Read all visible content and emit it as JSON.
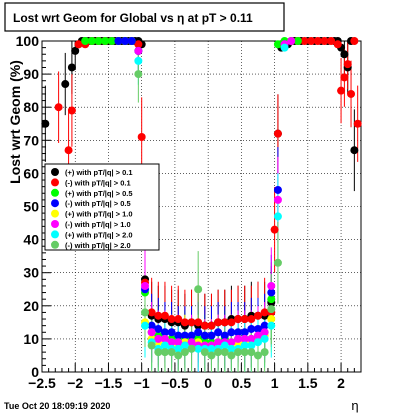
{
  "window": {
    "footer_timestamp": "Tue Oct 20 18:09:19 2020"
  },
  "chart_data": {
    "type": "scatter",
    "title": "Lost wrt Geom for Global vs   η at pT > 0.11",
    "xlabel": "η",
    "ylabel": "Lost wrt Geom (%)",
    "xlim": [
      -2.5,
      2.3
    ],
    "ylim": [
      0,
      100
    ],
    "x_ticks": [
      -2.5,
      -2,
      -1.5,
      -1,
      -0.5,
      0,
      0.5,
      1,
      1.5,
      2
    ],
    "x_tick_labels": [
      "−2.5",
      "−2",
      "−1.5",
      "−1",
      "−0.5",
      "0",
      "0.5",
      "1",
      "1.5",
      "2"
    ],
    "y_ticks": [
      0,
      10,
      20,
      30,
      40,
      50,
      60,
      70,
      80,
      90,
      100
    ],
    "y_tick_labels": [
      "0",
      "10",
      "20",
      "30",
      "40",
      "50",
      "60",
      "70",
      "80",
      "90",
      "100"
    ],
    "grid": true,
    "legend_position": "left-middle",
    "series": [
      {
        "name": "(+) with pT/|q| > 0.1",
        "color": "#000000",
        "x": [
          -2.45,
          -2.15,
          -2.05,
          -2.0,
          -1.95,
          -1.9,
          -1.85,
          -1.8,
          -1.75,
          -1.7,
          -1.65,
          -1.6,
          -1.55,
          -1.5,
          -1.45,
          -1.4,
          -1.35,
          -1.3,
          -1.25,
          -1.2,
          -1.15,
          -1.1,
          -1.05,
          -1.0,
          -0.95,
          -0.85,
          -0.75,
          -0.65,
          -0.55,
          -0.45,
          -0.35,
          -0.25,
          -0.15,
          -0.05,
          0.05,
          0.15,
          0.25,
          0.35,
          0.45,
          0.55,
          0.65,
          0.75,
          0.85,
          0.95,
          1.05,
          1.1,
          1.2,
          1.3,
          1.4,
          1.5,
          1.6,
          1.7,
          1.8,
          1.9,
          1.95,
          2.0,
          2.05,
          2.1,
          2.15,
          2.2
        ],
        "y": [
          75,
          87,
          92,
          97,
          99,
          100,
          100,
          100,
          100,
          100,
          100,
          100,
          100,
          100,
          100,
          100,
          100,
          100,
          100,
          100,
          100,
          100,
          100,
          99,
          28,
          17,
          16,
          16,
          15,
          15,
          14,
          15,
          14,
          14,
          14,
          15,
          15,
          16,
          16,
          16,
          17,
          17,
          17,
          21,
          72,
          98,
          99,
          100,
          100,
          100,
          100,
          100,
          100,
          100,
          100,
          98,
          96,
          92,
          100,
          67
        ]
      },
      {
        "name": "(-) with pT/|q| > 0.1",
        "color": "#ff0000",
        "x": [
          -2.25,
          -2.1,
          -2.05,
          -1.95,
          -1.85,
          -1.75,
          -1.65,
          -1.55,
          -1.45,
          -1.35,
          -1.25,
          -1.15,
          -1.05,
          -1.0,
          -0.95,
          -0.85,
          -0.75,
          -0.65,
          -0.55,
          -0.45,
          -0.35,
          -0.25,
          -0.15,
          -0.05,
          0.05,
          0.15,
          0.25,
          0.35,
          0.45,
          0.55,
          0.65,
          0.75,
          0.85,
          0.95,
          1.0,
          1.05,
          1.15,
          1.25,
          1.35,
          1.45,
          1.55,
          1.65,
          1.75,
          1.85,
          1.95,
          2.0,
          2.05,
          2.1,
          2.15,
          2.2,
          2.25
        ],
        "y": [
          80,
          67,
          79,
          99,
          99,
          100,
          100,
          100,
          100,
          100,
          100,
          100,
          99,
          71,
          27,
          18,
          17,
          17,
          16,
          16,
          15,
          15,
          15,
          14,
          14,
          15,
          15,
          15,
          16,
          16,
          16,
          17,
          18,
          18,
          43,
          72,
          99,
          100,
          100,
          100,
          100,
          100,
          100,
          100,
          99,
          85,
          89,
          93,
          84,
          100,
          75
        ]
      },
      {
        "name": "(+) with pT/|q| > 0.5",
        "color": "#00ff00",
        "x": [
          -1.85,
          -1.75,
          -1.65,
          -1.55,
          -1.45,
          -1.35,
          -1.25,
          -1.15,
          -1.05,
          -0.95,
          -0.85,
          -0.75,
          -0.65,
          -0.55,
          -0.45,
          -0.35,
          -0.25,
          -0.15,
          -0.05,
          0.05,
          0.15,
          0.25,
          0.35,
          0.45,
          0.55,
          0.65,
          0.75,
          0.85,
          0.95,
          1.05,
          1.15,
          1.25,
          1.35
        ],
        "y": [
          100,
          100,
          100,
          100,
          100,
          100,
          100,
          100,
          97,
          24,
          12,
          11,
          10,
          10,
          9,
          10,
          9,
          10,
          9,
          9,
          9,
          10,
          9,
          10,
          10,
          10,
          11,
          12,
          22,
          99,
          100,
          100,
          100
        ]
      },
      {
        "name": "(-) with pT/|q| > 0.5",
        "color": "#0000ff",
        "x": [
          -1.35,
          -1.25,
          -1.15,
          -1.05,
          -0.95,
          -0.85,
          -0.75,
          -0.65,
          -0.55,
          -0.45,
          -0.35,
          -0.25,
          -0.15,
          -0.05,
          0.05,
          0.15,
          0.25,
          0.35,
          0.45,
          0.55,
          0.65,
          0.75,
          0.85,
          0.95,
          1.05,
          1.15
        ],
        "y": [
          100,
          100,
          100,
          97,
          25,
          14,
          13,
          12,
          12,
          11,
          11,
          11,
          12,
          11,
          11,
          12,
          11,
          12,
          12,
          12,
          13,
          13,
          14,
          24,
          55,
          99
        ]
      },
      {
        "name": "(+) with pT/|q| > 1.0",
        "color": "#ffff00",
        "x": [
          -0.95,
          -0.85,
          -0.75,
          -0.65,
          -0.55,
          -0.45,
          -0.35,
          -0.25,
          -0.15,
          -0.05,
          0.05,
          0.15,
          0.25,
          0.35,
          0.45,
          0.55,
          0.65,
          0.75,
          0.85,
          0.95
        ],
        "y": [
          15,
          10,
          9,
          8,
          9,
          8,
          9,
          8,
          9,
          8,
          8,
          9,
          8,
          9,
          8,
          9,
          9,
          10,
          11,
          16
        ]
      },
      {
        "name": "(-) with pT/|q| > 1.0",
        "color": "#ff00ff",
        "x": [
          -1.05,
          -0.95,
          -0.85,
          -0.75,
          -0.65,
          -0.55,
          -0.45,
          -0.35,
          -0.25,
          -0.15,
          -0.05,
          0.05,
          0.15,
          0.25,
          0.35,
          0.45,
          0.55,
          0.65,
          0.75,
          0.85,
          0.95,
          1.05,
          1.15,
          1.25
        ],
        "y": [
          97,
          26,
          12,
          10,
          10,
          9,
          9,
          8,
          9,
          8,
          8,
          8,
          9,
          9,
          9,
          10,
          10,
          10,
          11,
          12,
          26,
          52,
          99,
          100
        ]
      },
      {
        "name": "(+) with pT/|q| > 2.0",
        "color": "#00ffff",
        "x": [
          -1.05,
          -0.95,
          -0.85,
          -0.75,
          -0.65,
          -0.55,
          -0.45,
          -0.35,
          -0.25,
          -0.15,
          -0.05,
          0.05,
          0.15,
          0.25,
          0.35,
          0.45,
          0.55,
          0.65,
          0.75,
          0.85,
          0.95,
          1.05,
          1.15
        ],
        "y": [
          94,
          14,
          9,
          7,
          8,
          7,
          7,
          8,
          7,
          7,
          7,
          7,
          7,
          8,
          7,
          7,
          8,
          8,
          9,
          10,
          14,
          47,
          98
        ]
      },
      {
        "name": "(-) with pT/|q| > 2.0",
        "color": "#66cc66",
        "x": [
          -1.05,
          -0.95,
          -0.85,
          -0.75,
          -0.65,
          -0.55,
          -0.45,
          -0.35,
          -0.25,
          -0.15,
          -0.05,
          0.05,
          0.15,
          0.25,
          0.35,
          0.45,
          0.55,
          0.65,
          0.75,
          0.85,
          0.95,
          1.05
        ],
        "y": [
          90,
          18,
          8,
          6,
          6,
          6,
          5,
          6,
          7,
          25,
          6,
          5,
          6,
          6,
          5,
          6,
          6,
          6,
          5,
          6,
          19,
          33
        ]
      }
    ]
  }
}
